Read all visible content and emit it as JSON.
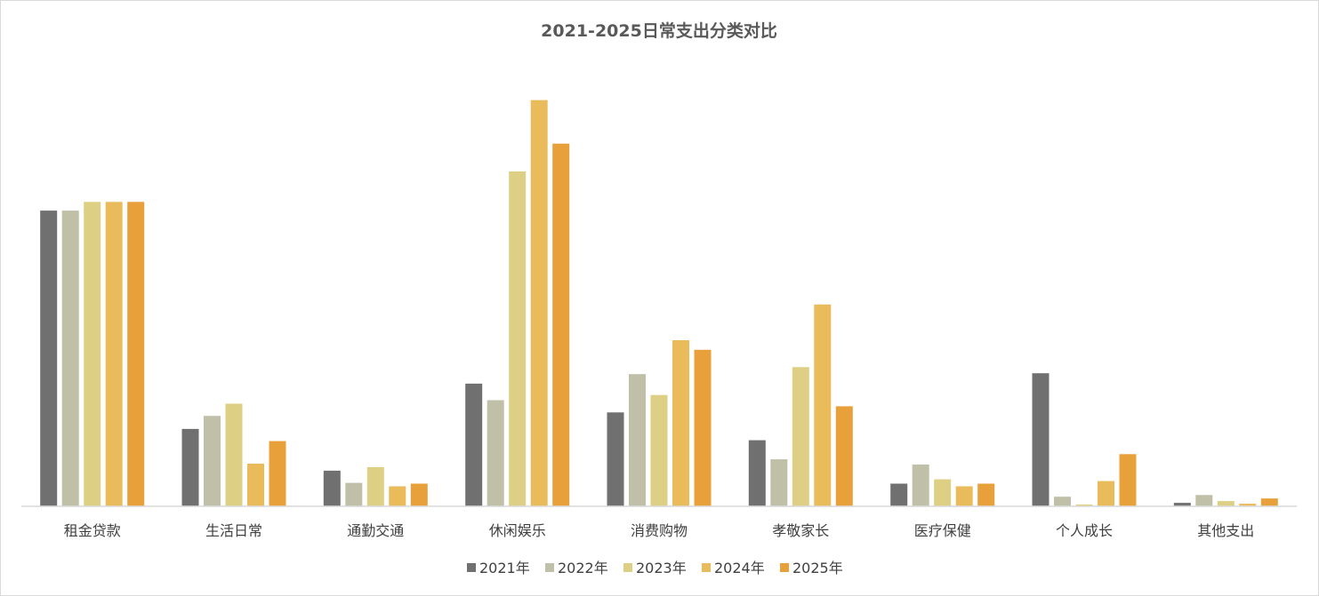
{
  "chart_data": {
    "type": "bar",
    "title": "2021-2025日常支出分类对比",
    "categories": [
      "租金贷款",
      "生活日常",
      "通勤交通",
      "休闲娱乐",
      "消费购物",
      "孝敬家长",
      "医疗保健",
      "个人成长",
      "其他支出"
    ],
    "series": [
      {
        "name": "2021年",
        "color": "#707070",
        "values": [
          340,
          89,
          41,
          141,
          108,
          76,
          26,
          153,
          4
        ]
      },
      {
        "name": "2022年",
        "color": "#c0c0a8",
        "values": [
          340,
          104,
          27,
          122,
          152,
          54,
          48,
          11,
          13
        ]
      },
      {
        "name": "2023年",
        "color": "#ddd084",
        "values": [
          350,
          118,
          45,
          385,
          128,
          160,
          31,
          2,
          6
        ]
      },
      {
        "name": "2024年",
        "color": "#e9bb5a",
        "values": [
          350,
          49,
          23,
          467,
          191,
          232,
          23,
          29,
          3
        ]
      },
      {
        "name": "2025年",
        "color": "#e8a03a",
        "values": [
          350,
          75,
          26,
          417,
          180,
          115,
          26,
          60,
          9
        ]
      }
    ],
    "xlabel": "",
    "ylabel": "",
    "ylim": [
      0,
      480
    ],
    "grid": false,
    "legend": "bottom"
  }
}
